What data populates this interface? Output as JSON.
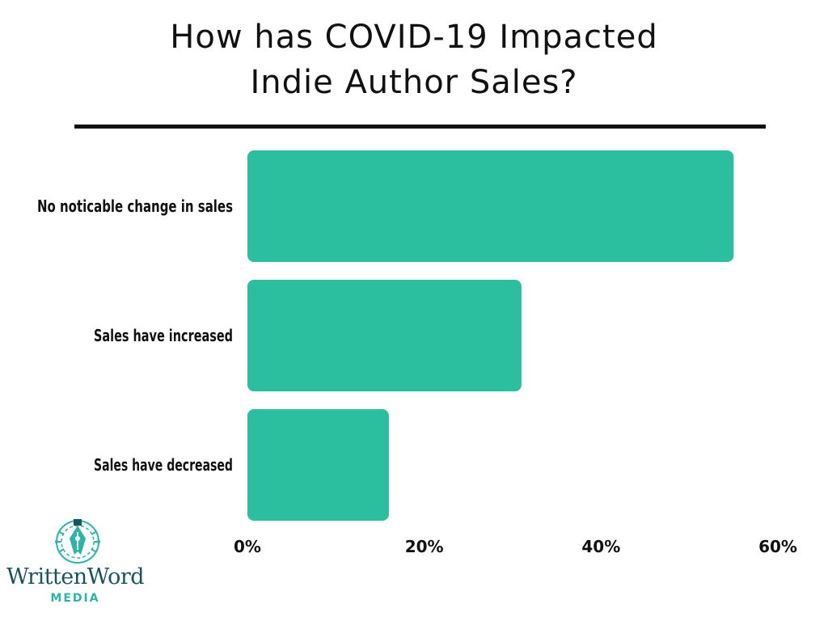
{
  "header": {
    "title_line1": "How has COVID-19 Impacted",
    "title_line2": "Indie Author Sales?"
  },
  "chart_data": {
    "type": "bar",
    "orientation": "horizontal",
    "categories": [
      "No noticable change in sales",
      "Sales have increased",
      "Sales have decreased"
    ],
    "values": [
      55,
      31,
      16
    ],
    "xlim": [
      0,
      60
    ],
    "x_ticks": [
      0,
      20,
      40,
      60
    ],
    "x_tick_labels": [
      "0%",
      "20%",
      "40%",
      "60%"
    ],
    "unit": "%",
    "grid": false,
    "legend": "none",
    "bar_color": "#2bbfa0"
  },
  "logo": {
    "name": "WrittenWord",
    "sub": "MEDIA",
    "icon": "pen-nib-circuit-icon",
    "colors": {
      "primary": "#17555a",
      "accent": "#2ab5a6"
    }
  }
}
